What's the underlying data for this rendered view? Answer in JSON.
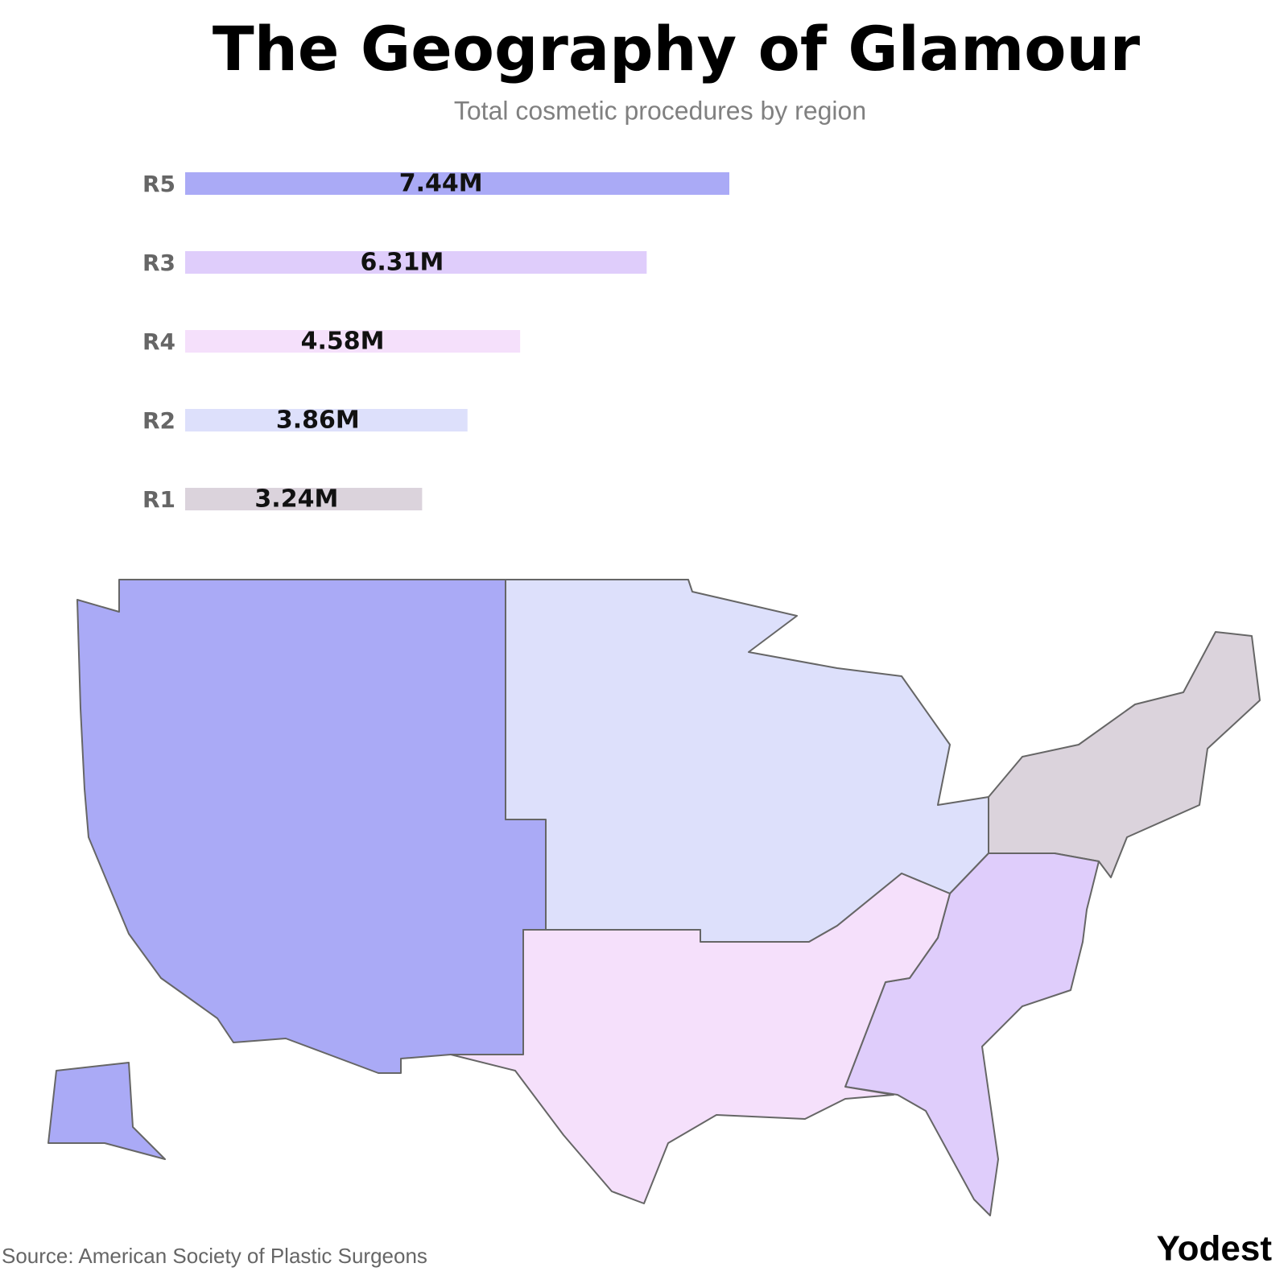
{
  "chart_data": {
    "type": "bar",
    "orientation": "horizontal",
    "title": "The Geography of Glamour",
    "subtitle": "Total cosmetic procedures by region",
    "categories": [
      "R5",
      "R3",
      "R4",
      "R2",
      "R1"
    ],
    "values": [
      7.44,
      6.31,
      4.58,
      3.86,
      3.24
    ],
    "value_labels": [
      "7.44M",
      "6.31M",
      "4.58M",
      "3.86M",
      "3.24M"
    ],
    "colors": [
      "#aaaaf6",
      "#dfcdfb",
      "#f5e0fb",
      "#dde0fb",
      "#dbd3dc"
    ]
  },
  "source": "Source: American Society of Plastic Surgeons",
  "brand": "Yodest"
}
